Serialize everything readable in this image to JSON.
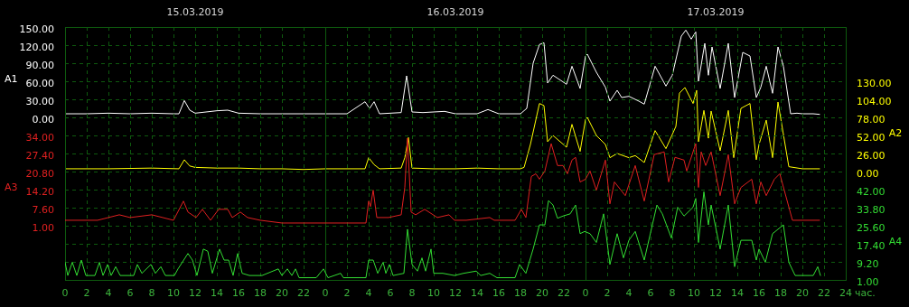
{
  "chart_data": [
    {
      "type": "line",
      "grid": true,
      "tick_labels": "y",
      "xlim": [
        "2019-03-15T00:00",
        "2019-03-18T00:00"
      ],
      "x2lim": [
        "2019-03-15T00:00",
        "2019-03-18T00:00"
      ],
      "x2ticks": [
        {
          "value": "2019-03-15T12:00",
          "label": "15.03.2019"
        },
        {
          "value": "2019-03-16T12:00",
          "label": "16.03.2019"
        },
        {
          "value": "2019-03-17T12:00",
          "label": "17.03.2019"
        }
      ],
      "ylabel": "A1",
      "ylim": [
        -270,
        150
      ],
      "yticks": [
        {
          "value": 0,
          "label": "0.00"
        },
        {
          "value": 30,
          "label": "30.00"
        },
        {
          "value": 60,
          "label": "60.00"
        },
        {
          "value": 90,
          "label": "90.00"
        },
        {
          "value": 120,
          "label": "120.00"
        },
        {
          "value": 150,
          "label": "150.00"
        }
      ],
      "y2label": "A2",
      "y2lim": [
        -156,
        208
      ],
      "y2ticks": [
        {
          "value": 0,
          "label": "0.00"
        },
        {
          "value": 26,
          "label": "26.00"
        },
        {
          "value": 52,
          "label": "52.00"
        },
        {
          "value": 78,
          "label": "78.00"
        },
        {
          "value": 104,
          "label": "104.00"
        },
        {
          "value": 130,
          "label": "130.00"
        }
      ],
      "series": [
        {
          "color": "#ffffff",
          "x": [
            "2019-03-15T00:00",
            "2019-03-15T02:00",
            "2019-03-15T04:00",
            "2019-03-15T06:00",
            "2019-03-15T08:00",
            "2019-03-15T10:00",
            "2019-03-15T10:30",
            "2019-03-15T11:00",
            "2019-03-15T11:30",
            "2019-03-15T12:00",
            "2019-03-15T13:00",
            "2019-03-15T14:00",
            "2019-03-15T15:00",
            "2019-03-15T16:00",
            "2019-03-15T18:00",
            "2019-03-15T20:00",
            "2019-03-15T22:00",
            "2019-03-16T00:00",
            "2019-03-16T02:00",
            "2019-03-16T03:40",
            "2019-03-16T04:05",
            "2019-03-16T04:30",
            "2019-03-16T05:00",
            "2019-03-16T06:00",
            "2019-03-16T07:00",
            "2019-03-16T07:30",
            "2019-03-16T08:00",
            "2019-03-16T09:00",
            "2019-03-16T11:00",
            "2019-03-16T12:00",
            "2019-03-16T14:00",
            "2019-03-16T15:00",
            "2019-03-16T16:00",
            "2019-03-16T18:00",
            "2019-03-16T18:35",
            "2019-03-16T19:10",
            "2019-03-16T19:45",
            "2019-03-16T20:10",
            "2019-03-16T20:30",
            "2019-03-16T21:00",
            "2019-03-16T22:15",
            "2019-03-16T22:45",
            "2019-03-16T23:30",
            "2019-03-17T00:00",
            "2019-03-17T00:10",
            "2019-03-17T01:00",
            "2019-03-17T01:50",
            "2019-03-17T02:15",
            "2019-03-17T02:55",
            "2019-03-17T03:20",
            "2019-03-17T04:00",
            "2019-03-17T04:55",
            "2019-03-17T05:25",
            "2019-03-17T06:25",
            "2019-03-17T07:25",
            "2019-03-17T08:00",
            "2019-03-17T08:50",
            "2019-03-17T09:15",
            "2019-03-17T09:45",
            "2019-03-17T10:10",
            "2019-03-17T10:25",
            "2019-03-17T11:00",
            "2019-03-17T11:20",
            "2019-03-17T11:40",
            "2019-03-17T12:25",
            "2019-03-17T13:10",
            "2019-03-17T13:45",
            "2019-03-17T14:30",
            "2019-03-17T15:10",
            "2019-03-17T15:45",
            "2019-03-17T16:10",
            "2019-03-17T16:40",
            "2019-03-17T17:15",
            "2019-03-17T17:45",
            "2019-03-17T18:15",
            "2019-03-17T18:55",
            "2019-03-17T19:30",
            "2019-03-17T20:00",
            "2019-03-17T21:00",
            "2019-03-17T21:35"
          ],
          "values": [
            6,
            6,
            7,
            6,
            7,
            6,
            6,
            28,
            12,
            7,
            9,
            11,
            12,
            7,
            6,
            6,
            6,
            6,
            6,
            26,
            15,
            26,
            6,
            7,
            8,
            69,
            9,
            8,
            10,
            6,
            6,
            13,
            6,
            6,
            15,
            90,
            121,
            124,
            57,
            70,
            55,
            85,
            48,
            102,
            105,
            75,
            50,
            27,
            45,
            33,
            35,
            27,
            22,
            85,
            52,
            70,
            135,
            145,
            130,
            142,
            60,
            123,
            70,
            117,
            48,
            123,
            33,
            108,
            102,
            33,
            50,
            85,
            40,
            117,
            85,
            6,
            7,
            6,
            6,
            5
          ]
        },
        {
          "color": "#ffff00",
          "axis": "y2",
          "x": [
            "2019-03-15T00:00",
            "2019-03-15T04:00",
            "2019-03-15T08:00",
            "2019-03-15T10:30",
            "2019-03-15T11:00",
            "2019-03-15T11:30",
            "2019-03-15T12:00",
            "2019-03-15T14:00",
            "2019-03-15T16:00",
            "2019-03-15T18:00",
            "2019-03-15T20:00",
            "2019-03-15T22:00",
            "2019-03-16T00:00",
            "2019-03-16T03:40",
            "2019-03-16T04:00",
            "2019-03-16T04:30",
            "2019-03-16T05:00",
            "2019-03-16T07:00",
            "2019-03-16T07:20",
            "2019-03-16T07:40",
            "2019-03-16T08:00",
            "2019-03-16T10:00",
            "2019-03-16T12:00",
            "2019-03-16T14:00",
            "2019-03-16T16:00",
            "2019-03-16T18:00",
            "2019-03-16T18:20",
            "2019-03-16T18:55",
            "2019-03-16T19:45",
            "2019-03-16T20:10",
            "2019-03-16T20:30",
            "2019-03-16T21:00",
            "2019-03-16T22:15",
            "2019-03-16T22:45",
            "2019-03-16T23:30",
            "2019-03-17T00:00",
            "2019-03-17T00:10",
            "2019-03-17T01:00",
            "2019-03-17T01:50",
            "2019-03-17T02:15",
            "2019-03-17T02:55",
            "2019-03-17T04:00",
            "2019-03-17T04:35",
            "2019-03-17T05:25",
            "2019-03-17T06:25",
            "2019-03-17T07:25",
            "2019-03-17T08:20",
            "2019-03-17T08:40",
            "2019-03-17T09:10",
            "2019-03-17T09:55",
            "2019-03-17T10:15",
            "2019-03-17T10:25",
            "2019-03-17T10:55",
            "2019-03-17T11:20",
            "2019-03-17T11:35",
            "2019-03-17T12:25",
            "2019-03-17T13:10",
            "2019-03-17T13:40",
            "2019-03-17T14:20",
            "2019-03-17T15:10",
            "2019-03-17T15:45",
            "2019-03-17T16:00",
            "2019-03-17T16:40",
            "2019-03-17T17:15",
            "2019-03-17T17:45",
            "2019-03-17T18:45",
            "2019-03-17T20:00",
            "2019-03-17T21:35"
          ],
          "values": [
            4,
            4,
            5,
            4,
            17,
            8,
            6,
            5,
            5,
            4,
            4,
            3,
            4,
            4,
            20,
            10,
            4,
            5,
            20,
            49,
            5,
            4,
            4,
            5,
            4,
            4,
            6,
            39,
            98,
            95,
            43,
            52,
            35,
            68,
            29,
            75,
            78,
            52,
            39,
            20,
            26,
            20,
            23,
            13,
            59,
            33,
            65,
            113,
            121,
            98,
            117,
            43,
            88,
            48,
            87,
            30,
            88,
            20,
            91,
            98,
            17,
            39,
            74,
            20,
            100,
            7,
            4,
            4
          ]
        }
      ]
    },
    {
      "type": "line",
      "grid": true,
      "xlim": [
        "2019-03-15T00:00",
        "2019-03-18T00:00"
      ],
      "xticks": [
        {
          "value": "2019-03-15T00:00",
          "label": "0"
        },
        {
          "value": "2019-03-15T02:00",
          "label": "2"
        },
        {
          "value": "2019-03-15T04:00",
          "label": "4"
        },
        {
          "value": "2019-03-15T06:00",
          "label": "6"
        },
        {
          "value": "2019-03-15T08:00",
          "label": "8"
        },
        {
          "value": "2019-03-15T10:00",
          "label": "10"
        },
        {
          "value": "2019-03-15T12:00",
          "label": "12"
        },
        {
          "value": "2019-03-15T14:00",
          "label": "14"
        },
        {
          "value": "2019-03-15T16:00",
          "label": "16"
        },
        {
          "value": "2019-03-15T18:00",
          "label": "18"
        },
        {
          "value": "2019-03-15T20:00",
          "label": "20"
        },
        {
          "value": "2019-03-15T22:00",
          "label": "22"
        },
        {
          "value": "2019-03-16T00:00",
          "label": "0"
        },
        {
          "value": "2019-03-16T02:00",
          "label": "2"
        },
        {
          "value": "2019-03-16T04:00",
          "label": "4"
        },
        {
          "value": "2019-03-16T06:00",
          "label": "6"
        },
        {
          "value": "2019-03-16T08:00",
          "label": "8"
        },
        {
          "value": "2019-03-16T10:00",
          "label": "10"
        },
        {
          "value": "2019-03-16T12:00",
          "label": "12"
        },
        {
          "value": "2019-03-16T14:00",
          "label": "14"
        },
        {
          "value": "2019-03-16T16:00",
          "label": "16"
        },
        {
          "value": "2019-03-16T18:00",
          "label": "18"
        },
        {
          "value": "2019-03-16T20:00",
          "label": "20"
        },
        {
          "value": "2019-03-16T22:00",
          "label": "22"
        },
        {
          "value": "2019-03-17T00:00",
          "label": "0"
        },
        {
          "value": "2019-03-17T02:00",
          "label": "2"
        },
        {
          "value": "2019-03-17T04:00",
          "label": "4"
        },
        {
          "value": "2019-03-17T06:00",
          "label": "6"
        },
        {
          "value": "2019-03-17T08:00",
          "label": "8"
        },
        {
          "value": "2019-03-17T10:00",
          "label": "10"
        },
        {
          "value": "2019-03-17T12:00",
          "label": "12"
        },
        {
          "value": "2019-03-17T14:00",
          "label": "14"
        },
        {
          "value": "2019-03-17T16:00",
          "label": "16"
        },
        {
          "value": "2019-03-17T18:00",
          "label": "18"
        },
        {
          "value": "2019-03-17T20:00",
          "label": "20"
        },
        {
          "value": "2019-03-17T22:00",
          "label": "22"
        },
        {
          "value": "2019-03-18T00:00",
          "label": "24"
        }
      ],
      "xlabel": "час.",
      "ylabel": "A3",
      "ylim": [
        -18.8,
        73.6
      ],
      "yticks": [
        {
          "value": 1,
          "label": "1.00"
        },
        {
          "value": 7.6,
          "label": "7.60"
        },
        {
          "value": 14.2,
          "label": "14.20"
        },
        {
          "value": 20.8,
          "label": "20.80"
        },
        {
          "value": 27.4,
          "label": "27.40"
        },
        {
          "value": 34,
          "label": "34.00"
        }
      ],
      "y2label": "A4",
      "y2lim": [
        1,
        115.8
      ],
      "y2ticks": [
        {
          "value": 1,
          "label": "1.00"
        },
        {
          "value": 9.2,
          "label": "9.20"
        },
        {
          "value": 17.4,
          "label": "17.40"
        },
        {
          "value": 25.6,
          "label": "25.60"
        },
        {
          "value": 33.8,
          "label": "33.80"
        },
        {
          "value": 42,
          "label": "42.00"
        }
      ],
      "series": [
        {
          "color": "#e02020",
          "x": [
            "2019-03-15T00:00",
            "2019-03-15T01:00",
            "2019-03-15T03:00",
            "2019-03-15T05:00",
            "2019-03-15T06:00",
            "2019-03-15T08:00",
            "2019-03-15T10:00",
            "2019-03-15T10:55",
            "2019-03-15T11:20",
            "2019-03-15T12:05",
            "2019-03-15T12:40",
            "2019-03-15T13:25",
            "2019-03-15T14:10",
            "2019-03-15T15:00",
            "2019-03-15T15:25",
            "2019-03-15T16:10",
            "2019-03-15T16:50",
            "2019-03-15T18:00",
            "2019-03-15T20:00",
            "2019-03-15T22:00",
            "2019-03-16T00:00",
            "2019-03-16T02:00",
            "2019-03-16T03:45",
            "2019-03-16T04:00",
            "2019-03-16T04:10",
            "2019-03-16T04:25",
            "2019-03-16T04:45",
            "2019-03-16T05:50",
            "2019-03-16T07:00",
            "2019-03-16T07:20",
            "2019-03-16T07:35",
            "2019-03-16T07:55",
            "2019-03-16T08:20",
            "2019-03-16T09:10",
            "2019-03-16T10:20",
            "2019-03-16T11:25",
            "2019-03-16T11:55",
            "2019-03-16T13:00",
            "2019-03-16T15:10",
            "2019-03-16T15:35",
            "2019-03-16T17:30",
            "2019-03-16T18:05",
            "2019-03-16T18:30",
            "2019-03-16T19:00",
            "2019-03-16T19:25",
            "2019-03-16T19:45",
            "2019-03-16T20:15",
            "2019-03-16T20:50",
            "2019-03-16T21:25",
            "2019-03-16T21:55",
            "2019-03-16T22:20",
            "2019-03-16T22:45",
            "2019-03-16T23:05",
            "2019-03-16T23:30",
            "2019-03-17T00:00",
            "2019-03-17T00:25",
            "2019-03-17T01:00",
            "2019-03-17T01:50",
            "2019-03-17T02:15",
            "2019-03-17T02:40",
            "2019-03-17T03:40",
            "2019-03-17T04:35",
            "2019-03-17T05:25",
            "2019-03-17T06:20",
            "2019-03-17T07:15",
            "2019-03-17T07:40",
            "2019-03-17T08:15",
            "2019-03-17T09:05",
            "2019-03-17T09:20",
            "2019-03-17T10:10",
            "2019-03-17T10:25",
            "2019-03-17T10:40",
            "2019-03-17T11:05",
            "2019-03-17T11:35",
            "2019-03-17T12:25",
            "2019-03-17T13:10",
            "2019-03-17T13:45",
            "2019-03-17T14:20",
            "2019-03-17T15:20",
            "2019-03-17T15:45",
            "2019-03-17T16:10",
            "2019-03-17T16:40",
            "2019-03-17T17:25",
            "2019-03-17T17:55",
            "2019-03-17T19:05",
            "2019-03-17T21:35"
          ],
          "values": [
            3,
            3,
            3,
            5,
            4,
            5,
            3,
            10,
            6,
            4,
            7,
            3,
            7,
            7,
            4,
            6,
            4,
            3,
            2,
            2,
            2,
            2,
            2,
            10,
            8,
            14,
            4,
            4,
            5,
            15,
            33,
            6,
            5,
            7,
            4,
            5,
            3,
            3,
            4,
            3,
            3,
            7,
            4,
            19,
            20,
            18,
            21,
            31,
            23,
            23,
            20,
            25,
            26,
            17,
            18,
            21,
            14,
            25,
            9,
            17,
            12,
            23,
            10,
            27,
            28,
            17,
            26,
            25,
            21,
            31,
            15,
            28,
            23,
            28,
            12,
            27,
            9,
            15,
            18,
            9,
            17,
            12,
            18,
            20,
            3,
            3
          ]
        },
        {
          "color": "#33dd33",
          "axis": "y2",
          "x": [
            "2019-03-15T00:00",
            "2019-03-15T00:15",
            "2019-03-15T00:40",
            "2019-03-15T01:05",
            "2019-03-15T01:30",
            "2019-03-15T01:55",
            "2019-03-15T02:45",
            "2019-03-15T03:10",
            "2019-03-15T03:30",
            "2019-03-15T03:55",
            "2019-03-15T04:15",
            "2019-03-15T04:40",
            "2019-03-15T05:05",
            "2019-03-15T06:20",
            "2019-03-15T06:40",
            "2019-03-15T07:05",
            "2019-03-15T07:55",
            "2019-03-15T08:20",
            "2019-03-15T08:50",
            "2019-03-15T09:15",
            "2019-03-15T10:05",
            "2019-03-15T10:25",
            "2019-03-15T11:20",
            "2019-03-15T11:45",
            "2019-03-15T12:10",
            "2019-03-15T12:45",
            "2019-03-15T13:10",
            "2019-03-15T13:35",
            "2019-03-15T14:15",
            "2019-03-15T14:40",
            "2019-03-15T15:05",
            "2019-03-15T15:30",
            "2019-03-15T15:55",
            "2019-03-15T16:20",
            "2019-03-15T17:00",
            "2019-03-15T18:10",
            "2019-03-15T19:40",
            "2019-03-15T20:00",
            "2019-03-15T20:30",
            "2019-03-15T20:55",
            "2019-03-15T21:15",
            "2019-03-15T21:35",
            "2019-03-15T23:10",
            "2019-03-15T23:50",
            "2019-03-16T00:15",
            "2019-03-16T01:25",
            "2019-03-16T01:40",
            "2019-03-16T03:45",
            "2019-03-16T04:00",
            "2019-03-16T04:25",
            "2019-03-16T04:50",
            "2019-03-16T05:20",
            "2019-03-16T05:35",
            "2019-03-16T05:55",
            "2019-03-16T06:15",
            "2019-03-16T07:15",
            "2019-03-16T07:35",
            "2019-03-16T08:00",
            "2019-03-16T08:30",
            "2019-03-16T08:55",
            "2019-03-16T09:15",
            "2019-03-16T09:45",
            "2019-03-16T10:00",
            "2019-03-16T10:50",
            "2019-03-16T11:55",
            "2019-03-16T12:45",
            "2019-03-16T13:55",
            "2019-03-16T14:20",
            "2019-03-16T15:10",
            "2019-03-16T15:50",
            "2019-03-16T17:30",
            "2019-03-16T17:55",
            "2019-03-16T18:30",
            "2019-03-16T19:10",
            "2019-03-16T19:45",
            "2019-03-16T20:15",
            "2019-03-16T20:35",
            "2019-03-16T21:00",
            "2019-03-16T21:25",
            "2019-03-16T21:55",
            "2019-03-16T22:35",
            "2019-03-16T23:05",
            "2019-03-16T23:30",
            "2019-03-16T23:55",
            "2019-03-17T00:25",
            "2019-03-17T01:00",
            "2019-03-17T01:40",
            "2019-03-17T02:15",
            "2019-03-17T02:55",
            "2019-03-17T03:30",
            "2019-03-17T04:00",
            "2019-03-17T04:35",
            "2019-03-17T05:25",
            "2019-03-17T06:35",
            "2019-03-17T07:05",
            "2019-03-17T07:55",
            "2019-03-17T08:30",
            "2019-03-17T09:05",
            "2019-03-17T09:55",
            "2019-03-17T10:10",
            "2019-03-17T10:25",
            "2019-03-17T10:55",
            "2019-03-17T11:20",
            "2019-03-17T11:35",
            "2019-03-17T12:25",
            "2019-03-17T13:10",
            "2019-03-17T13:45",
            "2019-03-17T14:20",
            "2019-03-17T15:20",
            "2019-03-17T15:45",
            "2019-03-17T16:00",
            "2019-03-17T16:35",
            "2019-03-17T17:15",
            "2019-03-17T18:15",
            "2019-03-17T18:45",
            "2019-03-17T19:20",
            "2019-03-17T21:00",
            "2019-03-17T21:25",
            "2019-03-17T21:40"
          ],
          "values": [
            9,
            3,
            9,
            3,
            10,
            3,
            3,
            9,
            3,
            8,
            3,
            7,
            3,
            3,
            8,
            4,
            8,
            4,
            7,
            3,
            3,
            6,
            13,
            10,
            3,
            15,
            14,
            4,
            15,
            10,
            10,
            3,
            13,
            4,
            3,
            3,
            6,
            3,
            6,
            3,
            6,
            2,
            2,
            6,
            2,
            4,
            2,
            2,
            10,
            10,
            4,
            9,
            4,
            8,
            3,
            4,
            24,
            8,
            5,
            11,
            5,
            15,
            4,
            4,
            3,
            4,
            5,
            3,
            4,
            2,
            2,
            8,
            4,
            15,
            26,
            26,
            37,
            35,
            29,
            30,
            31,
            35,
            22,
            23,
            22,
            18,
            31,
            8,
            22,
            11,
            19,
            23,
            10,
            35,
            31,
            20,
            34,
            30,
            34,
            38,
            18,
            41,
            26,
            35,
            15,
            35,
            7,
            19,
            19,
            10,
            15,
            9,
            22,
            26,
            9,
            3,
            3,
            7,
            3
          ]
        }
      ]
    }
  ]
}
